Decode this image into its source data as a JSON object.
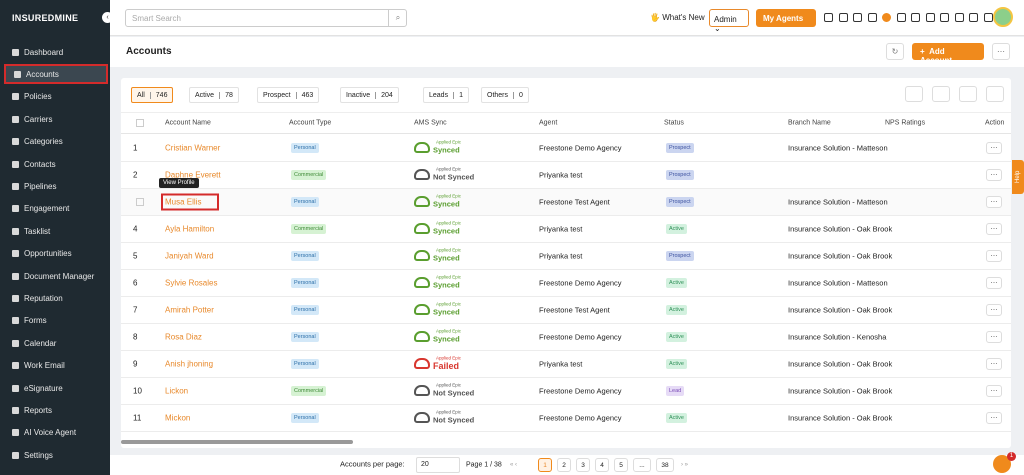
{
  "sidebar": {
    "logo": "INSUREDMINE",
    "nav": [
      "Dashboard",
      "Accounts",
      "Policies",
      "Carriers",
      "Categories",
      "Contacts",
      "Pipelines",
      "Engagement",
      "Tasklist",
      "Opportunities",
      "Document Manager",
      "Reputation",
      "Forms",
      "Calendar",
      "Work Email",
      "eSignature",
      "Reports",
      "AI Voice Agent",
      "Settings"
    ],
    "active": 1
  },
  "topbar": {
    "search_placeholder": "Smart Search",
    "whats_new": "What's New",
    "role": "Admin",
    "my_agents": "My Agents"
  },
  "page": {
    "title": "Accounts",
    "add_button": "Add Account"
  },
  "filters": [
    {
      "label": "All",
      "count": 746
    },
    {
      "label": "Active",
      "count": 78
    },
    {
      "label": "Prospect",
      "count": 463
    },
    {
      "label": "Inactive",
      "count": 204
    },
    {
      "label": "Leads",
      "count": 1
    },
    {
      "label": "Others",
      "count": 0
    }
  ],
  "table": {
    "headers": [
      "Account Name",
      "Account Type",
      "AMS Sync",
      "Agent",
      "Status",
      "Branch Name",
      "NPS Ratings",
      "Action"
    ],
    "sync_vendor": "Applied Epic",
    "badge_colors": {
      "Personal": [
        "#d3e8f8",
        "#2d6fa8"
      ],
      "Commercial": [
        "#d6f2d3",
        "#3f8a37"
      ],
      "Prospect": [
        "#cbd5f0",
        "#3d52a0"
      ],
      "Active": [
        "#d3f1df",
        "#2f9158"
      ],
      "Lead": [
        "#e6dbf6",
        "#7a4cb7"
      ]
    },
    "rows": [
      {
        "number": 1,
        "name": "Cristian Warner",
        "type": "Personal",
        "sync": "Synced",
        "sync_color": "#5a9e2f",
        "agent": "Freestone Demo Agency",
        "status": "Prospect",
        "branch": "Insurance Solution - Matteson"
      },
      {
        "number": 2,
        "name": "Daphne Everett",
        "type": "Commercial",
        "sync": "Not Synced",
        "sync_color": "#555555",
        "agent": "Priyanka test",
        "status": "Prospect",
        "branch": null
      },
      {
        "number": null,
        "name": "Musa Ellis",
        "type": "Personal",
        "sync": "Synced",
        "sync_color": "#5a9e2f",
        "agent": "Freestone Test Agent",
        "status": "Prospect",
        "branch": "Insurance Solution - Matteson"
      },
      {
        "number": 4,
        "name": "Ayla Hamilton",
        "type": "Commercial",
        "sync": "Synced",
        "sync_color": "#5a9e2f",
        "agent": "Priyanka test",
        "status": "Active",
        "branch": "Insurance Solution - Oak Brook"
      },
      {
        "number": 5,
        "name": "Janiyah Ward",
        "type": "Personal",
        "sync": "Synced",
        "sync_color": "#5a9e2f",
        "agent": "Priyanka test",
        "status": "Prospect",
        "branch": "Insurance Solution - Oak Brook"
      },
      {
        "number": 6,
        "name": "Sylvie Rosales",
        "type": "Personal",
        "sync": "Synced",
        "sync_color": "#5a9e2f",
        "agent": "Freestone Demo Agency",
        "status": "Active",
        "branch": "Insurance Solution - Matteson"
      },
      {
        "number": 7,
        "name": "Amirah Potter",
        "type": "Personal",
        "sync": "Synced",
        "sync_color": "#5a9e2f",
        "agent": "Freestone Test Agent",
        "status": "Active",
        "branch": "Insurance Solution - Oak Brook"
      },
      {
        "number": 8,
        "name": "Rosa Diaz",
        "type": "Personal",
        "sync": "Synced",
        "sync_color": "#5a9e2f",
        "agent": "Freestone Demo Agency",
        "status": "Active",
        "branch": "Insurance Solution - Kenosha"
      },
      {
        "number": 9,
        "name": "Anish jhoning",
        "type": "Personal",
        "sync": "Failed",
        "sync_color": "#d8372f",
        "agent": "Priyanka test",
        "status": "Active",
        "branch": "Insurance Solution - Oak Brook"
      },
      {
        "number": 10,
        "name": "Lickon",
        "type": "Commercial",
        "sync": "Not Synced",
        "sync_color": "#555555",
        "agent": "Freestone Demo Agency",
        "status": "Lead",
        "branch": "Insurance Solution - Oak Brook"
      },
      {
        "number": 11,
        "name": "Mickon",
        "type": "Personal",
        "sync": "Not Synced",
        "sync_color": "#555555",
        "agent": "Freestone Demo Agency",
        "status": "Active",
        "branch": "Insurance Solution - Oak Brook"
      }
    ]
  },
  "tooltip": "View Profile",
  "pagination": {
    "per_page_label": "Accounts per page:",
    "per_page": 20,
    "page_info": "Page 1 / 38",
    "pages": [
      1,
      2,
      3,
      4,
      5,
      "...",
      38
    ],
    "current": 0
  },
  "help": "Help",
  "chat_badge": 1
}
